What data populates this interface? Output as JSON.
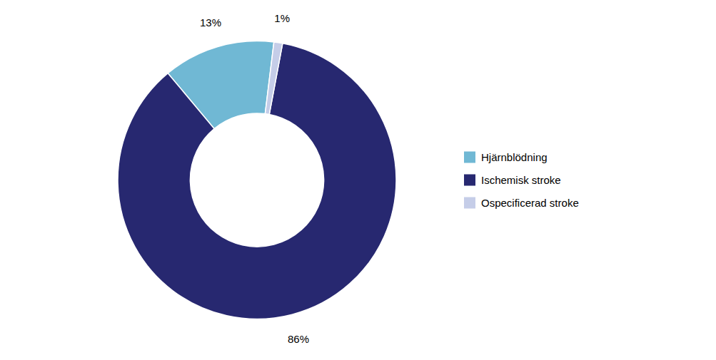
{
  "chart_data": {
    "type": "donut",
    "categories": [
      "Hjärnblödning",
      "Ischemisk stroke",
      "Ospecificerad stroke"
    ],
    "values": [
      13,
      86,
      1
    ],
    "value_labels": [
      "13%",
      "86%",
      "1%"
    ],
    "colors": [
      "#70b8d4",
      "#272870",
      "#c5cde8"
    ],
    "data_labels": true,
    "legend": "right"
  }
}
